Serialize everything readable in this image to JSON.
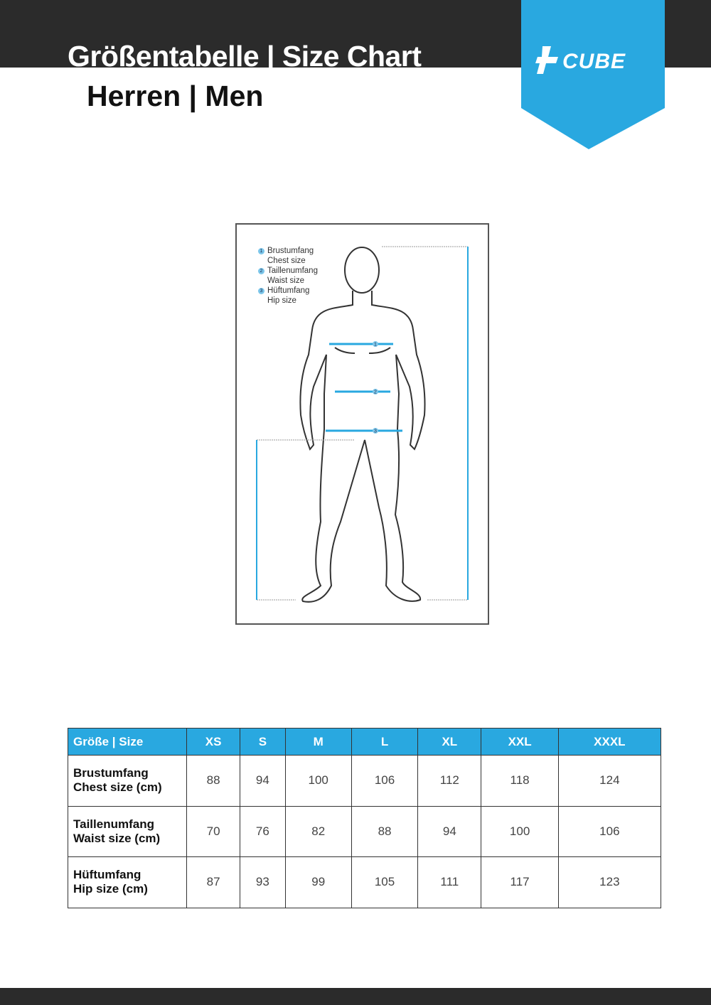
{
  "header": {
    "title": "Größentabelle | Size Chart",
    "subtitle": "Herren | Men",
    "logo_text": "CUBE",
    "brand_color": "#29a8e0",
    "bar_color": "#2b2b2b"
  },
  "figure": {
    "legend": [
      {
        "num": "1",
        "de": "Brustumfang",
        "en": "Chest size"
      },
      {
        "num": "2",
        "de": "Taillenumfang",
        "en": "Waist size"
      },
      {
        "num": "3",
        "de": "Hüftumfang",
        "en": "Hip size"
      }
    ],
    "markers": [
      "1",
      "2",
      "3"
    ]
  },
  "table": {
    "header": [
      "Größe | Size",
      "XS",
      "S",
      "M",
      "L",
      "XL",
      "XXL",
      "XXXL"
    ],
    "rows": [
      {
        "label_de": "Brustumfang",
        "label_en": "Chest size (cm)",
        "values": [
          "88",
          "94",
          "100",
          "106",
          "112",
          "118",
          "124"
        ]
      },
      {
        "label_de": "Taillenumfang",
        "label_en": "Waist size (cm)",
        "values": [
          "70",
          "76",
          "82",
          "88",
          "94",
          "100",
          "106"
        ]
      },
      {
        "label_de": "Hüftumfang",
        "label_en": "Hip size (cm)",
        "values": [
          "87",
          "93",
          "99",
          "105",
          "111",
          "117",
          "123"
        ]
      }
    ]
  }
}
